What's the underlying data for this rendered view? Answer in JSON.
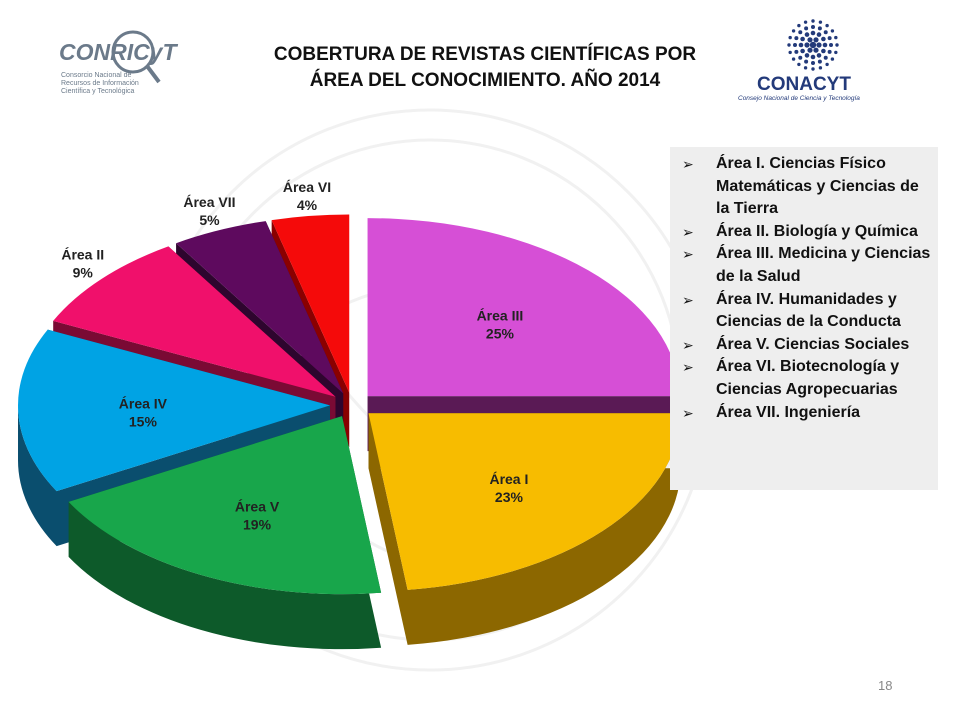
{
  "title": {
    "line1": "COBERTURA DE REVISTAS CIENTÍFICAS POR",
    "line2": "ÁREA DEL CONOCIMIENTO. AÑO 2014"
  },
  "logos": {
    "left": {
      "text": "CONRICyT",
      "sub1": "Consorcio Nacional de",
      "sub2": "Recursos de Información",
      "sub3": "Científica y Tecnológica"
    },
    "right": {
      "text": "CONACYT",
      "sub": "Consejo Nacional de Ciencia y Tecnología"
    }
  },
  "legend": {
    "items": [
      "Área I. Ciencias Físico Matemáticas y Ciencias de la Tierra",
      "Área II. Biología y Química",
      "Área III. Medicina y Ciencias de la Salud",
      "Área IV. Humanidades y Ciencias de la Conducta",
      "Área V. Ciencias Sociales",
      "Área VI. Biotecnología y Ciencias Agropecuarias",
      "Área VII. Ingeniería"
    ]
  },
  "page_number": "18",
  "chart_data": {
    "type": "pie",
    "style": "3d-exploded",
    "legend_placement": "right",
    "categories": [
      "Área III",
      "Área I",
      "Área V",
      "Área IV",
      "Área II",
      "Área VII",
      "Área VI"
    ],
    "values": [
      25,
      23,
      19,
      15,
      9,
      5,
      4
    ],
    "labels": [
      "25%",
      "23%",
      "19%",
      "15%",
      "9%",
      "5%",
      "4%"
    ],
    "colors": [
      "#d64fd6",
      "#f7bc00",
      "#18a64b",
      "#00a3e4",
      "#f0106b",
      "#5e0a5e",
      "#f50a0a"
    ],
    "side_colors": [
      "#5a1a55",
      "#8c6700",
      "#0d5a2a",
      "#0a4e6e",
      "#7a0a34",
      "#2e052e",
      "#8a0000"
    ]
  }
}
